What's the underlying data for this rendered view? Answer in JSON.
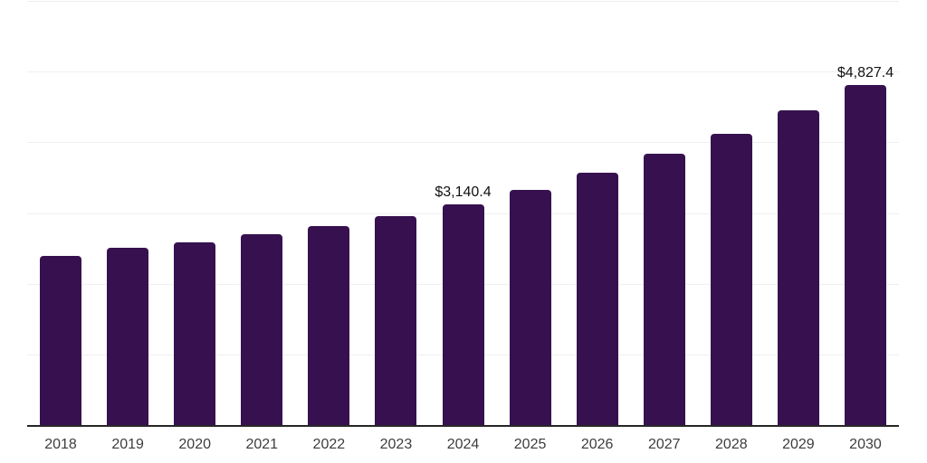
{
  "chart_data": {
    "type": "bar",
    "title": "",
    "xlabel": "",
    "ylabel": "",
    "categories": [
      "2018",
      "2019",
      "2020",
      "2021",
      "2022",
      "2023",
      "2024",
      "2025",
      "2026",
      "2027",
      "2028",
      "2029",
      "2030"
    ],
    "values": [
      2410,
      2525,
      2600,
      2715,
      2830,
      2970,
      3140.4,
      3340,
      3585,
      3855,
      4135,
      4465,
      4827.4
    ],
    "bar_labels": [
      "",
      "",
      "",
      "",
      "",
      "",
      "$3,140.4",
      "",
      "",
      "",
      "",
      "",
      "$4,827.4"
    ],
    "ylim": [
      0,
      6000
    ],
    "gridline_step": 1000,
    "grid": "horizontal-only",
    "legend_position": "none",
    "colors": {
      "bar": "#37114F",
      "gridline": "#efefef",
      "axis_line": "#262626",
      "bar_label_text": "#111111",
      "tick_label_text": "#3d3d3d",
      "background": "#ffffff"
    }
  }
}
